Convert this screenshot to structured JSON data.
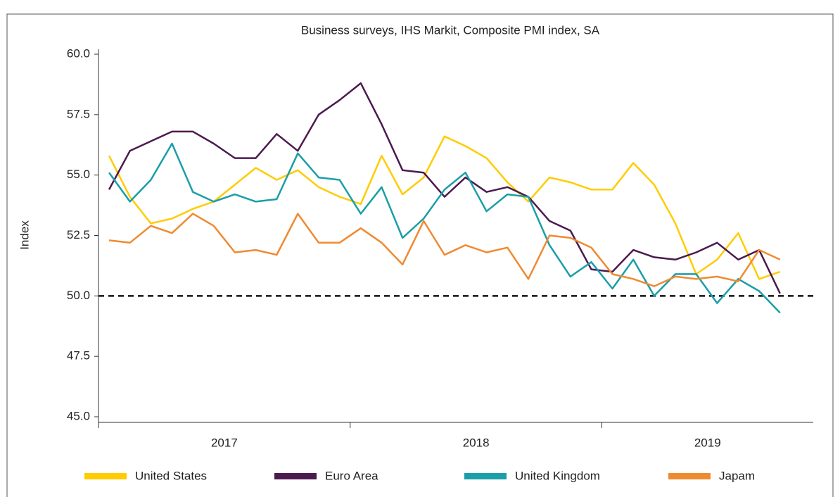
{
  "chart_data": {
    "type": "line",
    "title": "Business surveys, IHS Markit, Composite PMI index, SA",
    "y_label": "Index",
    "x": [
      2017.042,
      2017.125,
      2017.208,
      2017.292,
      2017.375,
      2017.458,
      2017.542,
      2017.625,
      2017.708,
      2017.792,
      2017.875,
      2017.958,
      2018.042,
      2018.125,
      2018.208,
      2018.292,
      2018.375,
      2018.458,
      2018.542,
      2018.625,
      2018.708,
      2018.792,
      2018.875,
      2018.958,
      2019.042,
      2019.125,
      2019.208,
      2019.292,
      2019.375,
      2019.458,
      2019.542,
      2019.625,
      2019.708
    ],
    "series": [
      {
        "name": "United States",
        "color": "#ffcc00",
        "values": [
          55.8,
          54.1,
          53.0,
          53.2,
          53.6,
          53.9,
          54.6,
          55.3,
          54.8,
          55.2,
          54.5,
          54.1,
          53.8,
          55.8,
          54.2,
          54.9,
          56.6,
          56.2,
          55.7,
          54.7,
          53.9,
          54.9,
          54.7,
          54.4,
          54.4,
          55.5,
          54.6,
          53.0,
          50.9,
          51.5,
          52.6,
          50.7,
          51.0
        ]
      },
      {
        "name": "Euro Area",
        "color": "#4b1a4f",
        "values": [
          54.4,
          56.0,
          56.4,
          56.8,
          56.8,
          56.3,
          55.7,
          55.7,
          56.7,
          56.0,
          57.5,
          58.1,
          58.8,
          57.1,
          55.2,
          55.1,
          54.1,
          54.9,
          54.3,
          54.5,
          54.1,
          53.1,
          52.7,
          51.1,
          51.0,
          51.9,
          51.6,
          51.5,
          51.8,
          52.2,
          51.5,
          51.9,
          50.1
        ]
      },
      {
        "name": "United Kingdom",
        "color": "#1a9ea8",
        "values": [
          55.1,
          53.9,
          54.8,
          56.3,
          54.3,
          53.9,
          54.2,
          53.9,
          54.0,
          55.9,
          54.9,
          54.8,
          53.4,
          54.5,
          52.4,
          53.2,
          54.4,
          55.1,
          53.5,
          54.2,
          54.1,
          52.1,
          50.8,
          51.4,
          50.3,
          51.5,
          50.0,
          50.9,
          50.9,
          49.7,
          50.7,
          50.2,
          49.3
        ]
      },
      {
        "name": "Japam",
        "color": "#f08a30",
        "values": [
          52.3,
          52.2,
          52.9,
          52.6,
          53.4,
          52.9,
          51.8,
          51.9,
          51.7,
          53.4,
          52.2,
          52.2,
          52.8,
          52.2,
          51.3,
          53.1,
          51.7,
          52.1,
          51.8,
          52.0,
          50.7,
          52.5,
          52.4,
          52.0,
          50.9,
          50.7,
          50.4,
          50.8,
          50.7,
          50.8,
          50.6,
          51.9,
          51.5
        ]
      }
    ],
    "xlim": [
      2017,
      2019.84
    ],
    "xticks": [
      {
        "value": 2017,
        "label": "2017"
      },
      {
        "value": 2018,
        "label": "2018"
      },
      {
        "value": 2019,
        "label": "2019"
      }
    ],
    "ylim": [
      45,
      60
    ],
    "yticks": [
      {
        "value": 45,
        "label": "45.0"
      },
      {
        "value": 47.5,
        "label": "47.5"
      },
      {
        "value": 50,
        "label": "50.0"
      },
      {
        "value": 52.5,
        "label": "52.5"
      },
      {
        "value": 55,
        "label": "55.0"
      },
      {
        "value": 57.5,
        "label": "57.5"
      },
      {
        "value": 60,
        "label": "60.0"
      }
    ],
    "reference_line": 50,
    "legend": "bottom"
  }
}
